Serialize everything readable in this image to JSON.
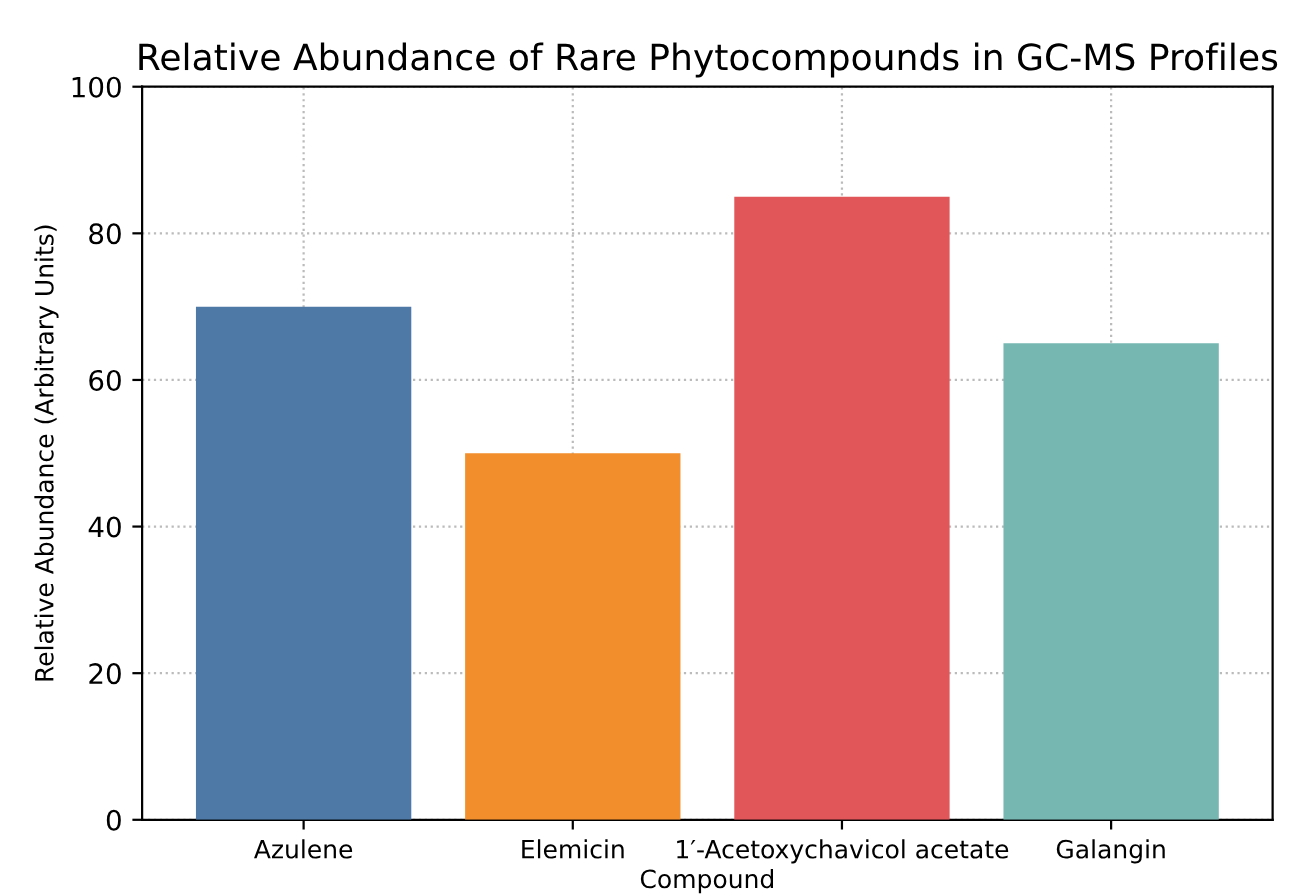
{
  "chart_data": {
    "type": "bar",
    "title": "Relative Abundance of Rare Phytocompounds in GC-MS Profiles",
    "xlabel": "Compound",
    "ylabel": "Relative Abundance (Arbitrary Units)",
    "categories": [
      "Azulene",
      "Elemicin",
      "1′-Acetoxychavicol acetate",
      "Galangin"
    ],
    "values": [
      70,
      50,
      85,
      65
    ],
    "colors": [
      "#4e79a7",
      "#f28e2b",
      "#e15759",
      "#76b7b2"
    ],
    "ylim": [
      0,
      100
    ],
    "yticks": [
      0,
      20,
      40,
      60,
      80,
      100
    ],
    "grid": true
  }
}
